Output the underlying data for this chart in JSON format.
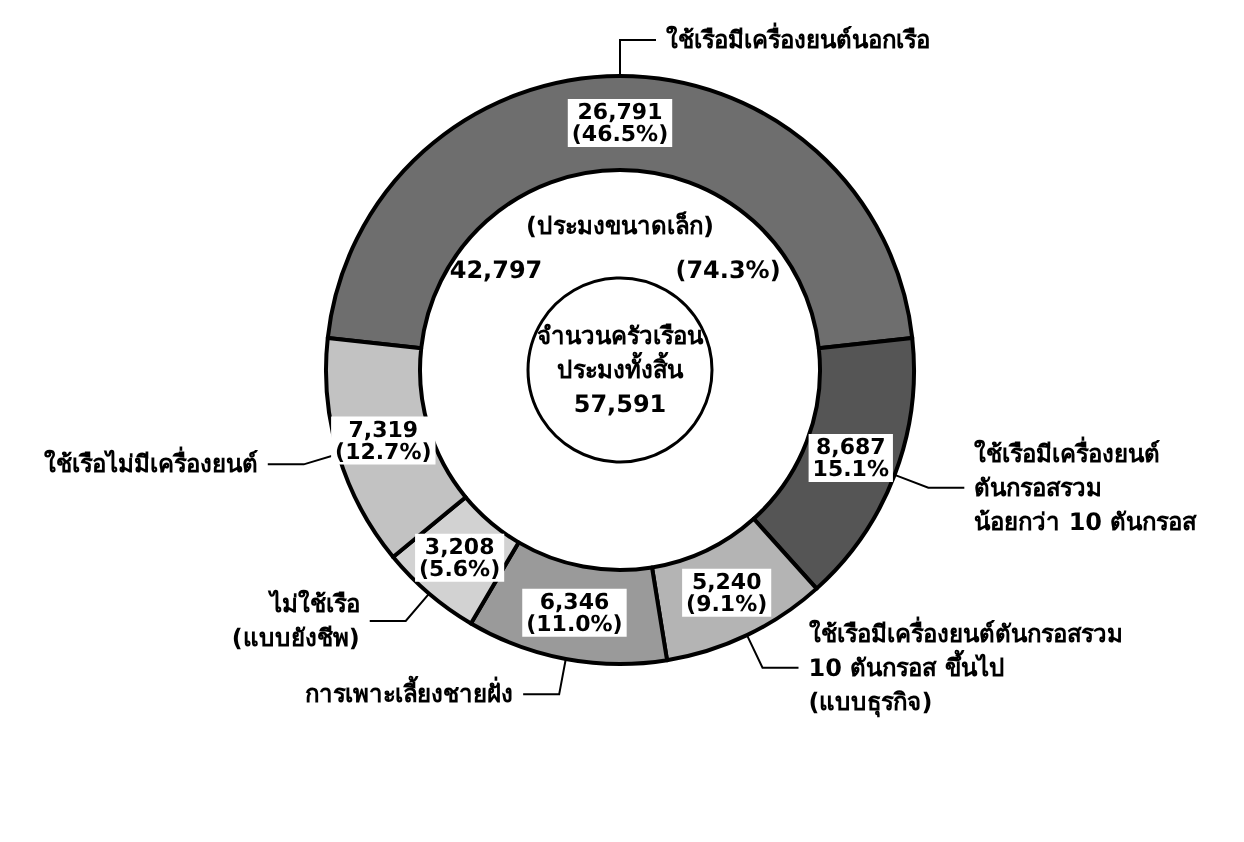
{
  "chart_data": {
    "type": "donut",
    "categories": [
      "ใช้เรือมีเครื่องยนต์นอกเรือ",
      "ใช้เรือมีเครื่องยนต์\nตันกรอสรวม\nน้อยกว่า 10 ตันกรอส",
      "ใช้เรือมีเครื่องยนต์ตันกรอสรวม\n10 ตันกรอส ขึ้นไป\n(แบบธุรกิจ)",
      "การเพาะเลี้ยงชายฝั่ง",
      "ไม่ใช้เรือ\n(แบบยังชีพ)",
      "ใช้เรือไม่มีเครื่องยนต์"
    ],
    "values": [
      26791,
      8687,
      5240,
      6346,
      3208,
      7319
    ],
    "value_labels": [
      "26,791\n(46.5%)",
      "8,687\n15.1%",
      "5,240\n(9.1%)",
      "6,346\n(11.0%)",
      "3,208\n(5.6%)",
      "7,319\n(12.7%)"
    ],
    "colors": [
      "#6e6e6e",
      "#555555",
      "#b4b4b4",
      "#9a9a9a",
      "#d2d2d2",
      "#c2c2c2"
    ],
    "annotations": [
      "(ประมงขนาดเล็ก)",
      "42,797",
      "(74.3%)",
      "จำนวนครัวเรือน\nประมงทั้งสิ้น\n57,591"
    ]
  }
}
